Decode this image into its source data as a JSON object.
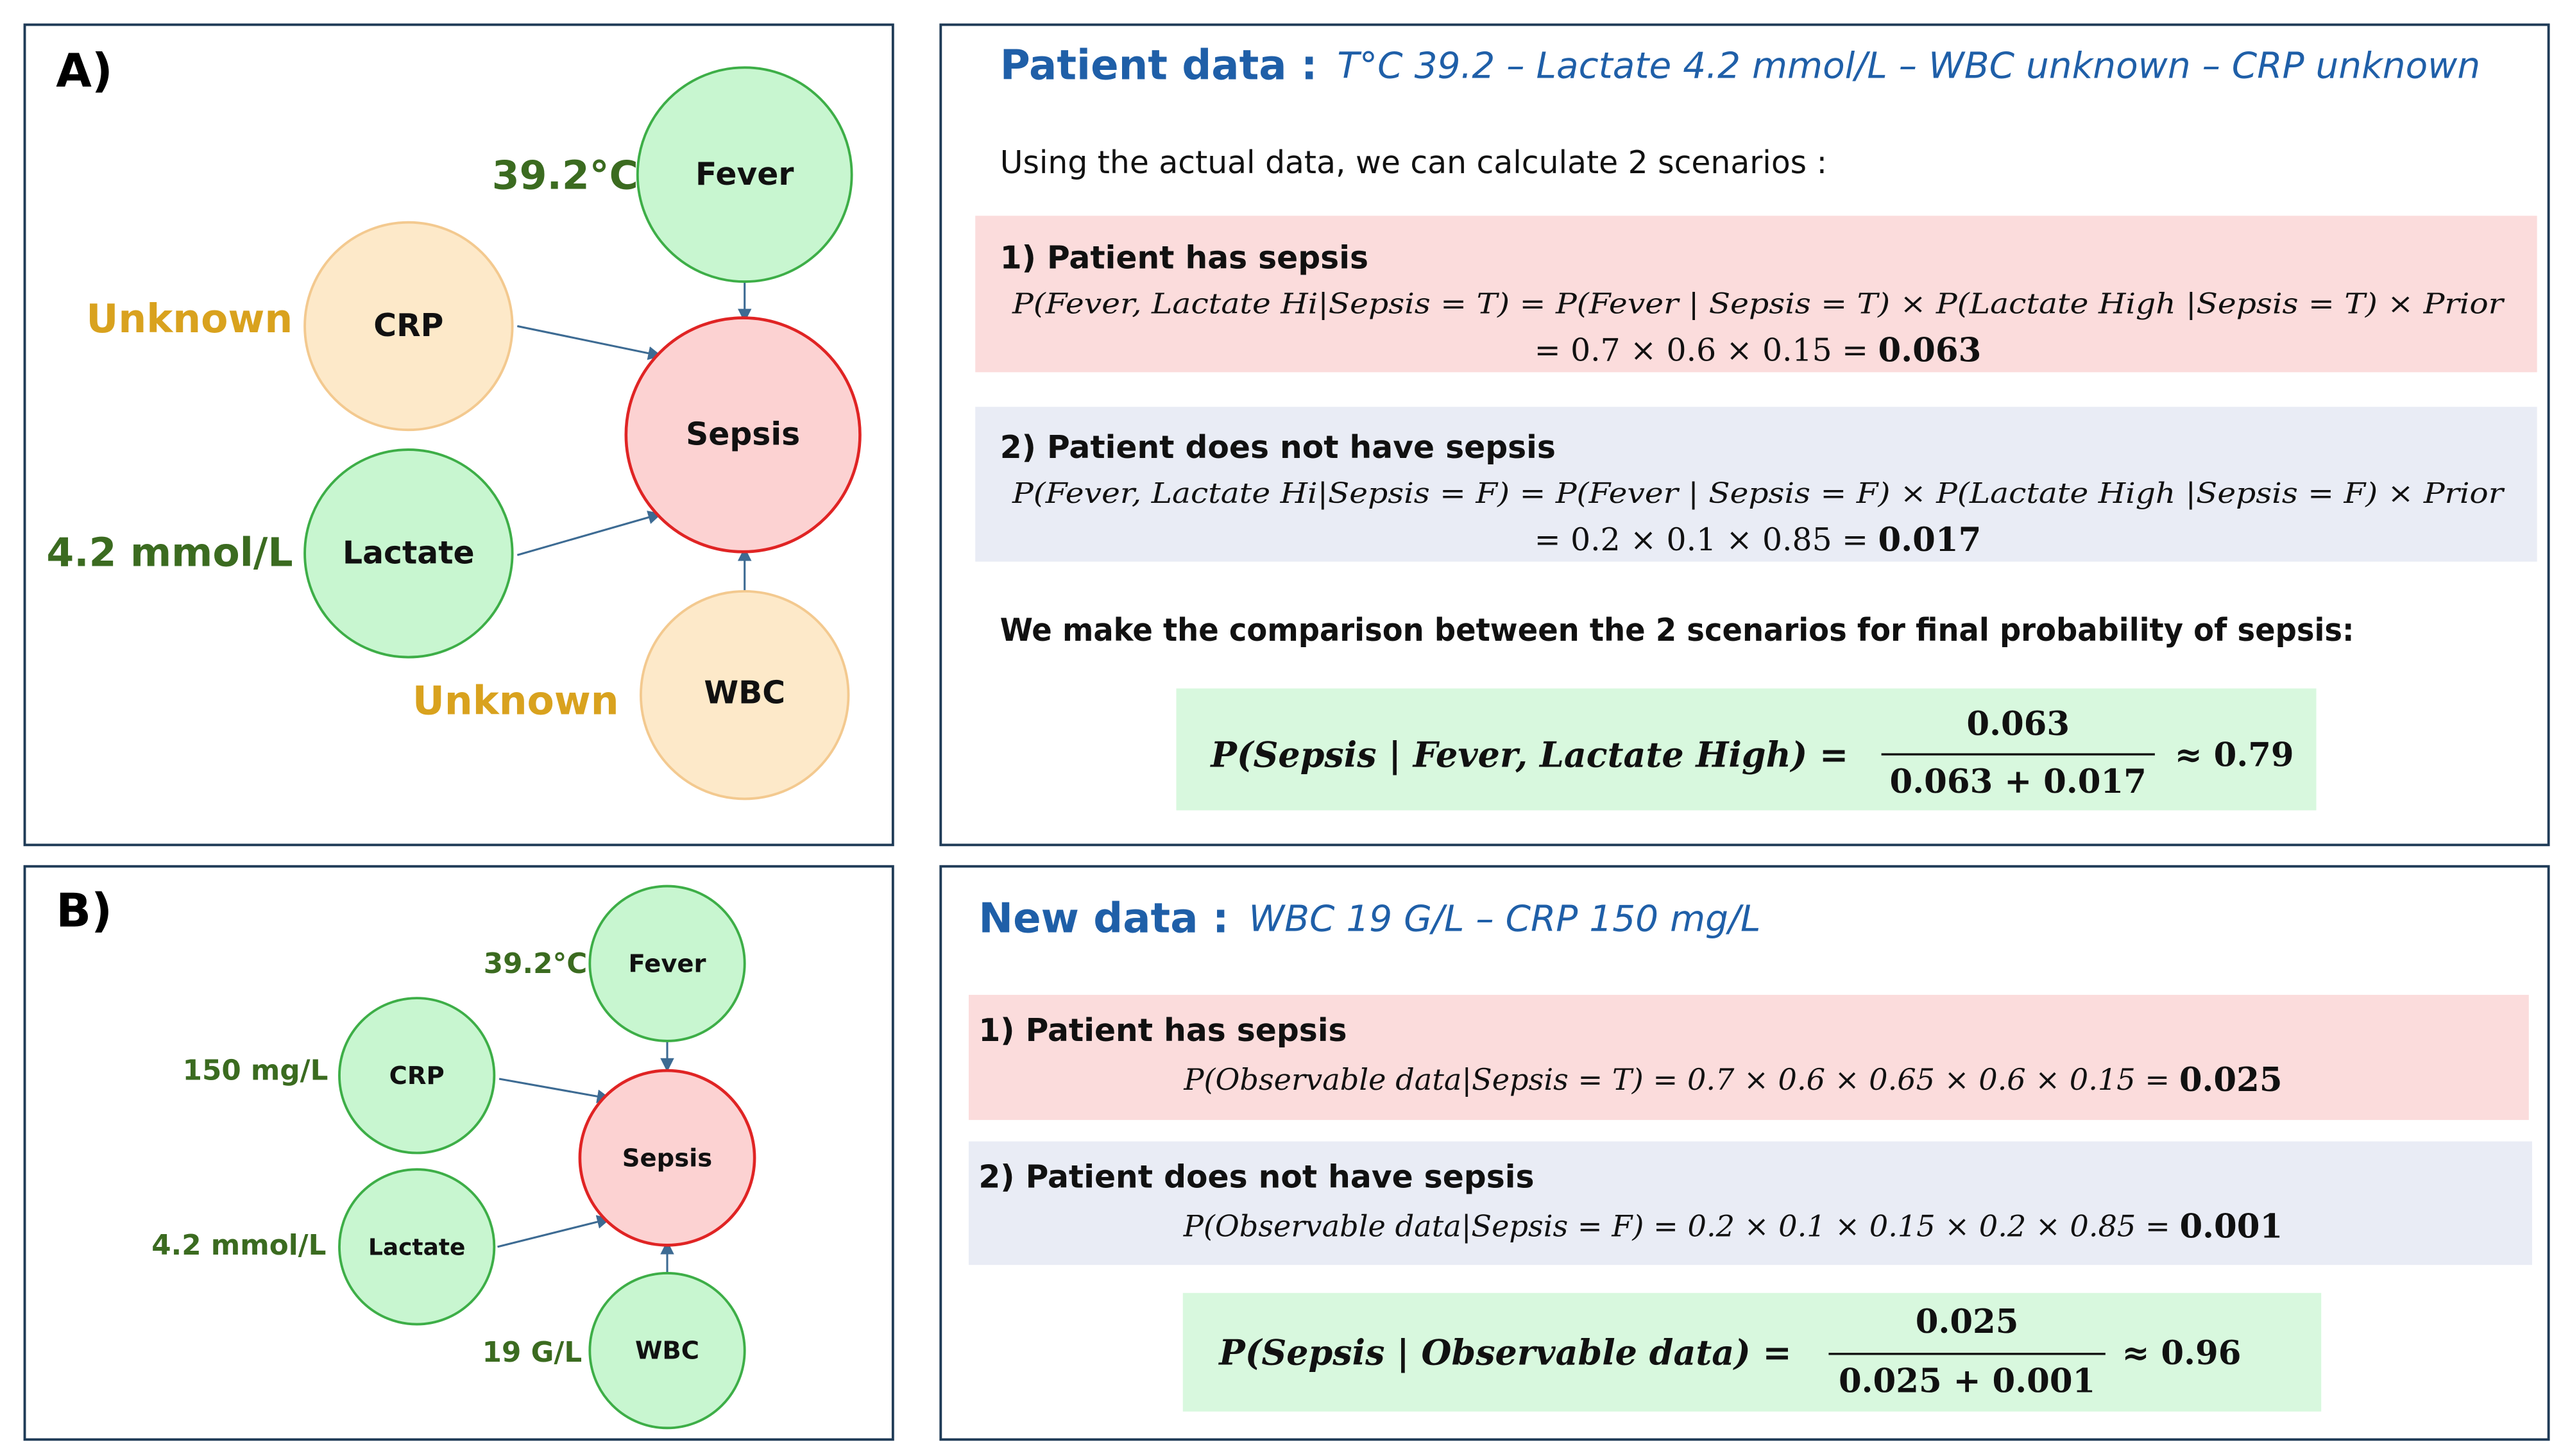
{
  "panel_a": {
    "label": "A)",
    "nodes": [
      {
        "label": "Fever",
        "value": "39.2°C"
      },
      {
        "label": "CRP",
        "value": "Unknown"
      },
      {
        "label": "Sepsis"
      },
      {
        "label": "Lactate",
        "value": "4.2 mmol/L"
      },
      {
        "label": "WBC",
        "value": "Unknown"
      }
    ]
  },
  "panel_a_text": {
    "title": "Patient data :",
    "subtitle": "T°C 39.2 – Lactate 4.2 mmol/L – WBC unknown – CRP unknown",
    "intro": "Using the actual data, we can calculate 2 scenarios :",
    "scenarios": [
      {
        "heading": "1) Patient has sepsis",
        "formula": "P(Fever, Lactate Hi|Sepsis = T) = P(Fever | Sepsis = T) × P(Lactate High |Sepsis = T) × Prior",
        "calc": "= 0.7 × 0.6 × 0.15 = ",
        "result": "0.063"
      },
      {
        "heading": "2) Patient does not have sepsis",
        "formula": "P(Fever, Lactate Hi|Sepsis = F) = P(Fever | Sepsis = F) × P(Lactate High |Sepsis = F) × Prior",
        "calc": "= 0.2 × 0.1 × 0.85 = ",
        "result": "0.017"
      }
    ],
    "comparison": "We make the comparison between the 2 scenarios for final probability of sepsis:",
    "final": {
      "lhs": "P(Sepsis | Fever, Lactate High) =",
      "numerator": "0.063",
      "denominator": "0.063 + 0.017",
      "result": "≈ 0.79"
    }
  },
  "panel_b": {
    "label": "B)",
    "nodes": [
      {
        "label": "Fever",
        "value": "39.2°C"
      },
      {
        "label": "CRP",
        "value": "150 mg/L"
      },
      {
        "label": "Sepsis"
      },
      {
        "label": "Lactate",
        "value": "4.2 mmol/L"
      },
      {
        "label": "WBC",
        "value": "19 G/L"
      }
    ]
  },
  "panel_b_text": {
    "title": "New data :",
    "subtitle": "WBC 19 G/L – CRP 150 mg/L",
    "scenarios": [
      {
        "heading": "1) Patient has sepsis",
        "formula": "P(Observable data|Sepsis = T) = 0.7 × 0.6 × 0.65 × 0.6 × 0.15 = ",
        "result": "0.025"
      },
      {
        "heading": "2) Patient does not have sepsis",
        "formula": "P(Observable data|Sepsis = F) = 0.2 × 0.1 × 0.15 × 0.2 × 0.85 = ",
        "result": "0.001"
      }
    ],
    "final": {
      "lhs": "P(Sepsis | Observable data) =",
      "numerator": "0.025",
      "denominator": "0.025 + 0.001",
      "result": "≈ 0.96"
    }
  }
}
